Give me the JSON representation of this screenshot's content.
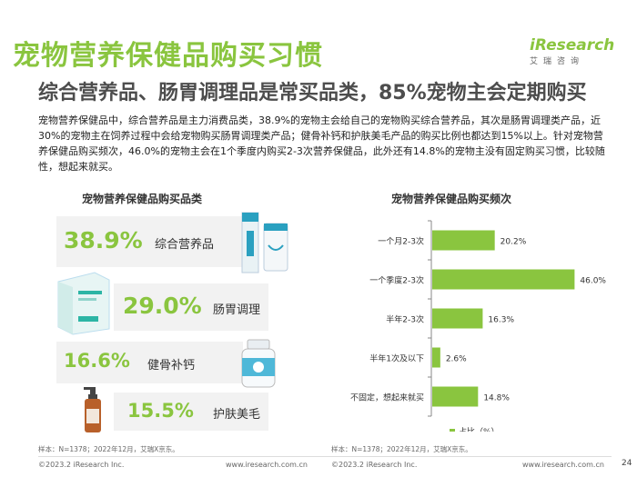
{
  "title": "宠物营养保健品购买习惯",
  "subtitle": "综合营养品、肠胃调理品是常买品类，85%宠物主会定期购买",
  "description": "宠物营养保健品中，综合营养品是主力消费品类，38.9%的宠物主会给自己的宠物购买综合营养品，其次是肠胃调理类产品，近30%的宠物主在饲养过程中会给宠物购买肠胃调理类产品；健骨补钙和护肤美毛产品的购买比例也都达到15%以上。针对宠物营养保健品购买频次，46.0%的宠物主会在1个季度内购买2-3次营养保健品，此外还有14.8%的宠物主没有固定购买习惯，比较随性，想起来就买。",
  "logo": {
    "brand_i": "i",
    "brand_rest": "Research",
    "cn": "艾瑞咨询"
  },
  "left_panel": {
    "title": "宠物营养保健品购买品类",
    "items": [
      {
        "pct": "38.9%",
        "label": "综合营养品"
      },
      {
        "pct": "29.0%",
        "label": "肠胃调理"
      },
      {
        "pct": "16.6%",
        "label": "健骨补钙"
      },
      {
        "pct": "15.5%",
        "label": "护肤美毛"
      }
    ],
    "note": "样本：N=1378；2022年12月，艾瑞X京东。"
  },
  "right_panel": {
    "title": "宠物营养保健品购买频次",
    "note": "样本：N=1378；2022年12月，艾瑞X京东。"
  },
  "chart_data": {
    "type": "bar",
    "orientation": "horizontal",
    "title": "宠物营养保健品购买频次",
    "categories": [
      "一个月2-3次",
      "一个季度2-3次",
      "半年2-3次",
      "半年1次及以下",
      "不固定，想起来就买"
    ],
    "values": [
      20.2,
      46.0,
      16.3,
      2.6,
      14.8
    ],
    "value_labels": [
      "20.2%",
      "46.0%",
      "16.3%",
      "2.6%",
      "14.8%"
    ],
    "legend": "占比（%）",
    "legend_position": "bottom",
    "xlim": [
      0,
      50
    ],
    "grid": false,
    "color": "#8ac53f"
  },
  "footer": {
    "left_copyright": "©2023.2 iResearch Inc.",
    "left_url": "www.iresearch.com.cn",
    "right_copyright": "©2023.2 iResearch Inc.",
    "right_url": "www.iresearch.com.cn",
    "page": "24"
  }
}
